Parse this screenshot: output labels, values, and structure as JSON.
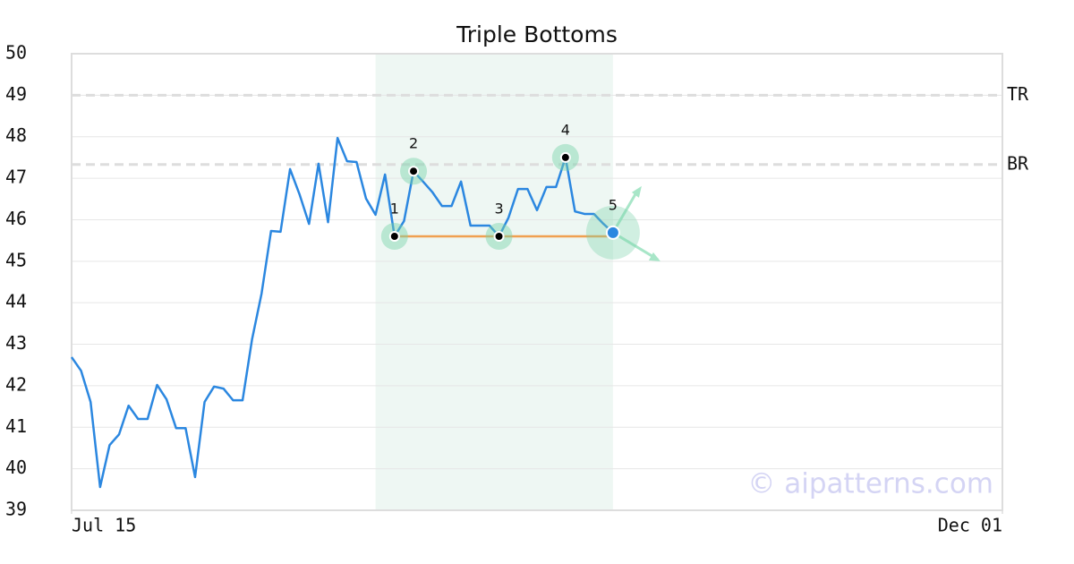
{
  "chart_data": {
    "type": "line",
    "title": "Triple Bottoms",
    "watermark": "© aipatterns.com",
    "xlim": [
      0,
      98
    ],
    "xticks": [
      {
        "value": 0,
        "label": "Jul 15"
      },
      {
        "value": 98,
        "label": "Dec 01"
      }
    ],
    "ylim": [
      39,
      50
    ],
    "yticks": [
      39,
      40,
      41,
      42,
      43,
      44,
      45,
      46,
      47,
      48,
      49,
      50
    ],
    "grid": true,
    "series": [
      {
        "color": "#2b87e0",
        "x": [
          0,
          1,
          2,
          3,
          4,
          5,
          6,
          7,
          8,
          9,
          10,
          11,
          12,
          13,
          14,
          15,
          16,
          17,
          18,
          19,
          20,
          21,
          22,
          23,
          24,
          25,
          26,
          27,
          28,
          29,
          30,
          31,
          32,
          33,
          34,
          35,
          36,
          37,
          38,
          39,
          40,
          41,
          42,
          43,
          44,
          45,
          46,
          47,
          48,
          49,
          50,
          51,
          52,
          53,
          54,
          55,
          56,
          57
        ],
        "values": [
          42.69,
          42.36,
          41.61,
          39.56,
          40.57,
          40.83,
          41.52,
          41.2,
          41.2,
          42.02,
          41.67,
          40.98,
          40.98,
          39.8,
          41.61,
          41.98,
          41.93,
          41.65,
          41.65,
          43.12,
          44.22,
          45.73,
          45.71,
          47.22,
          46.61,
          45.9,
          47.35,
          45.94,
          47.97,
          47.41,
          47.39,
          46.51,
          46.12,
          47.09,
          45.6,
          45.97,
          47.17,
          46.92,
          46.66,
          46.33,
          46.33,
          46.92,
          45.86,
          45.86,
          45.86,
          45.6,
          46.05,
          46.74,
          46.74,
          46.23,
          46.79,
          46.79,
          47.5,
          46.2,
          46.14,
          46.14,
          45.9,
          45.69
        ]
      }
    ],
    "highlight": [
      32,
      57
    ],
    "levels": [
      {
        "label": "TR",
        "value": 49
      },
      {
        "label": "BR",
        "value": 47.33
      }
    ],
    "neckline": {
      "x": [
        34,
        57
      ],
      "value": 45.6,
      "color": "#f0a050"
    },
    "pattern_points": [
      {
        "label": "1",
        "x": 34,
        "y": 45.6
      },
      {
        "label": "2",
        "x": 36,
        "y": 47.17
      },
      {
        "label": "3",
        "x": 45,
        "y": 45.6
      },
      {
        "label": "4",
        "x": 52,
        "y": 47.5
      },
      {
        "label": "5",
        "x": 57,
        "y": 45.69
      }
    ]
  }
}
